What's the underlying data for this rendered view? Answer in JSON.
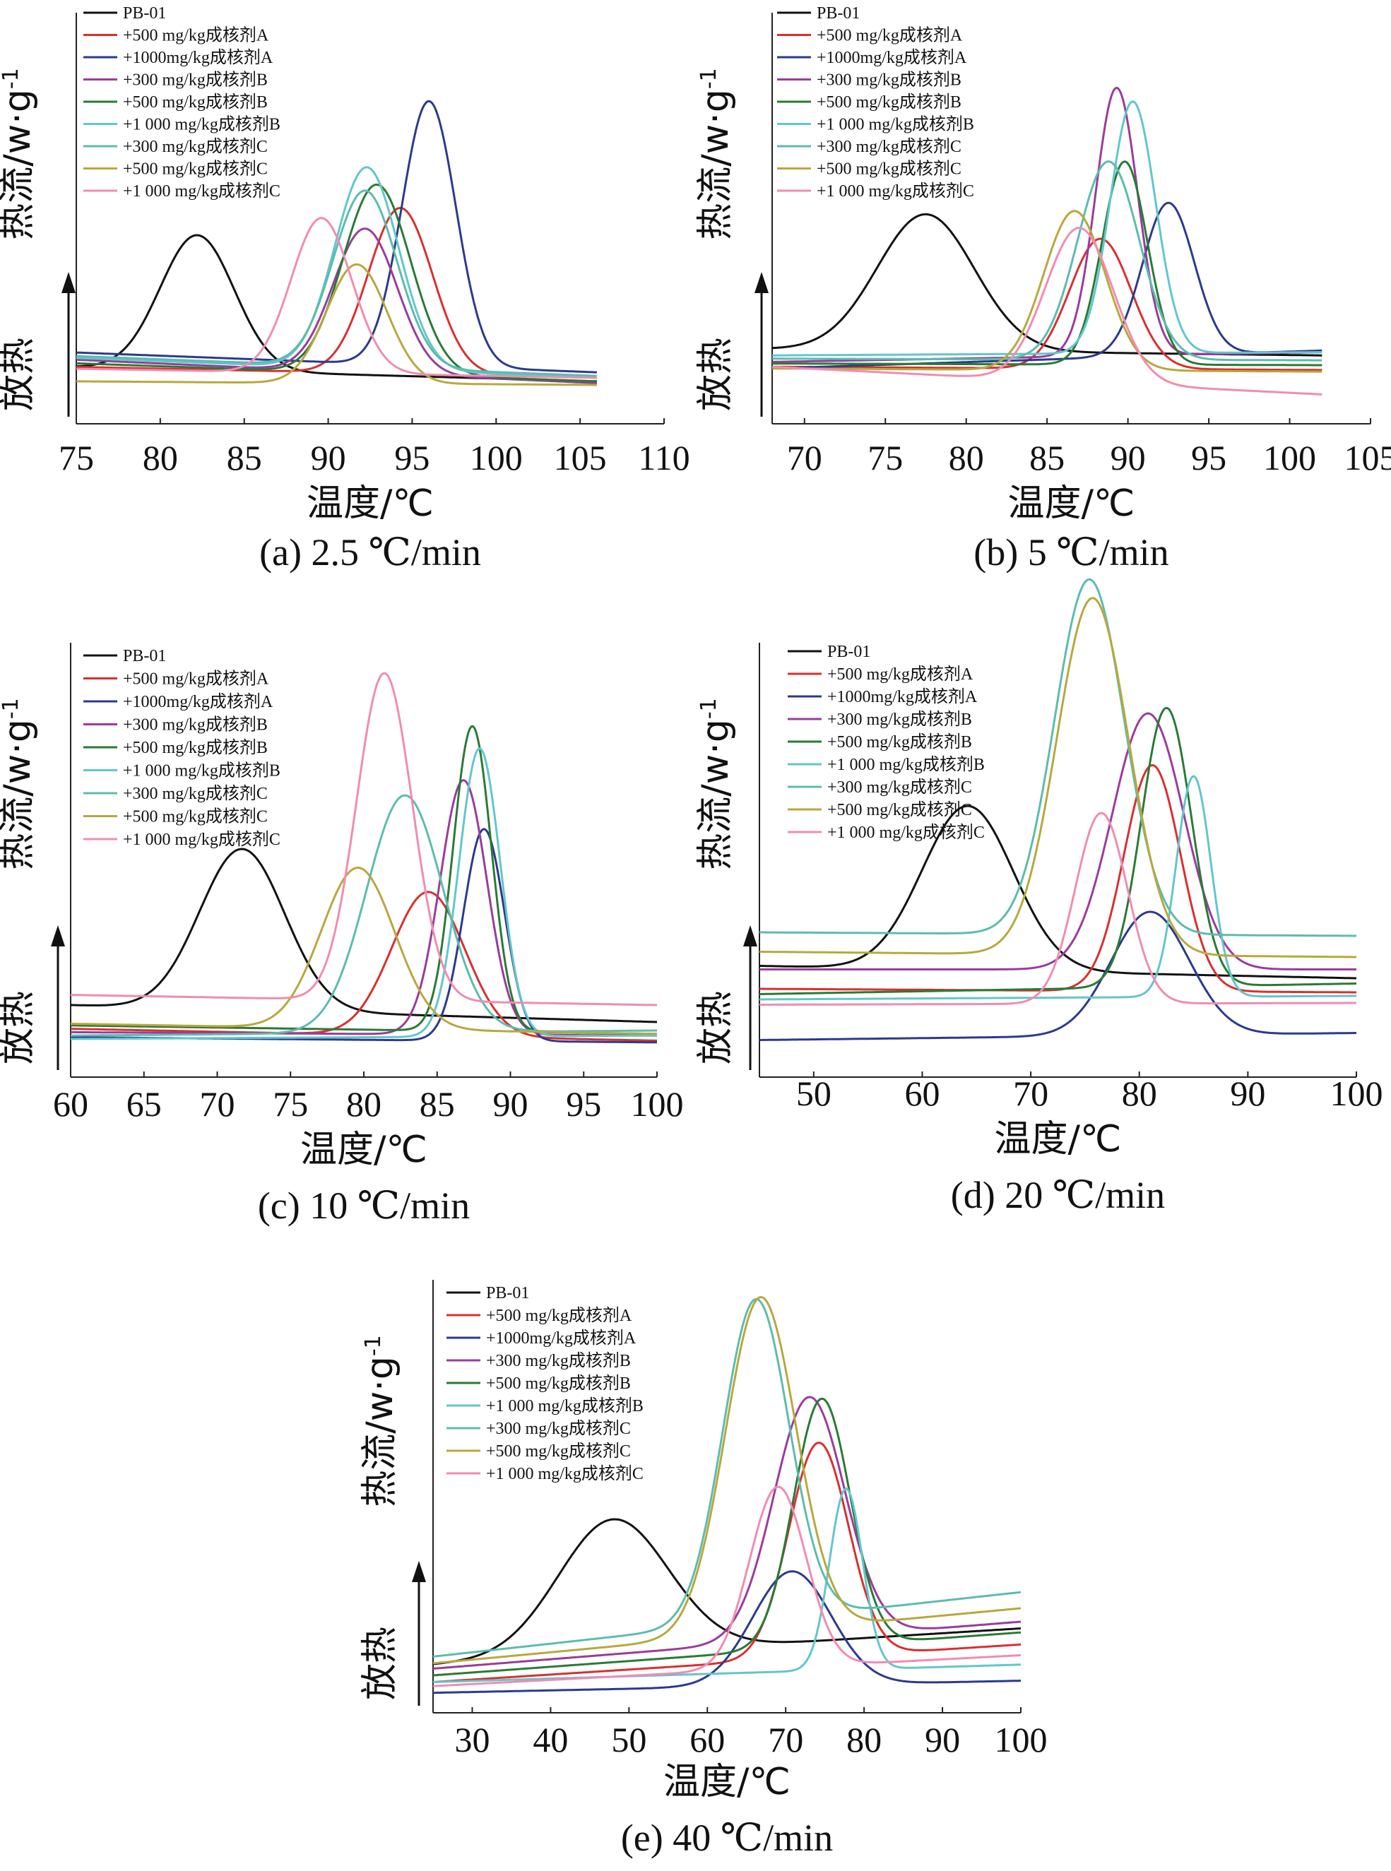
{
  "figure": {
    "y_label": "热流/w·g",
    "y_label_sup": "-1",
    "exo_label": "放热",
    "x_label": "温度/℃"
  },
  "legend": [
    {
      "name": "PB-01",
      "color": "#111111"
    },
    {
      "name": "+500 mg/kg成核剂A",
      "color": "#d83030"
    },
    {
      "name": "+1000mg/kg成核剂A",
      "color": "#2c3a8c"
    },
    {
      "name": "+300 mg/kg成核剂B",
      "color": "#9a3c9c"
    },
    {
      "name": "+500 mg/kg成核剂B",
      "color": "#2a7a36"
    },
    {
      "name": "+1 000 mg/kg成核剂B",
      "color": "#62c6cc"
    },
    {
      "name": "+300 mg/kg成核剂C",
      "color": "#5cbcae"
    },
    {
      "name": "+500 mg/kg成核剂C",
      "color": "#b8a83e"
    },
    {
      "name": "+1 000 mg/kg成核剂C",
      "color": "#f08cb2"
    }
  ],
  "chart_data": [
    {
      "type": "line",
      "caption": "(a) 2.5 ℃/min",
      "xlabel": "温度/℃",
      "ylabel": "热流/w·g-1",
      "xlim": [
        75,
        110
      ],
      "xticks": [
        75,
        80,
        85,
        90,
        95,
        100,
        105,
        110
      ],
      "curve_end": 106,
      "ylim": [
        0,
        1
      ],
      "series": [
        {
          "name": "PB-01",
          "baseline_left": 0.1,
          "baseline_right": 0.02,
          "peak_x": 82.2,
          "peak_h": 0.75,
          "width": 2.2
        },
        {
          "name": "+500 mg/kg成核剂A",
          "baseline_left": 0.1,
          "baseline_right": 0.04,
          "peak_x": 94.3,
          "peak_h": 0.92,
          "width": 1.9
        },
        {
          "name": "+1000mg/kg成核剂A",
          "baseline_left": 0.18,
          "baseline_right": 0.07,
          "peak_x": 96.0,
          "peak_h": 1.47,
          "width": 1.6
        },
        {
          "name": "+300 mg/kg成核剂B",
          "baseline_left": 0.14,
          "baseline_right": 0.01,
          "peak_x": 92.2,
          "peak_h": 0.8,
          "width": 1.9
        },
        {
          "name": "+500 mg/kg成核剂B",
          "baseline_left": 0.12,
          "baseline_right": 0.02,
          "peak_x": 92.9,
          "peak_h": 1.05,
          "width": 2.0
        },
        {
          "name": "+1 000 mg/kg成核剂B",
          "baseline_left": 0.15,
          "baseline_right": 0.04,
          "peak_x": 92.3,
          "peak_h": 1.12,
          "width": 1.9
        },
        {
          "name": "+300 mg/kg成核剂C",
          "baseline_left": 0.16,
          "baseline_right": 0.05,
          "peak_x": 92.2,
          "peak_h": 0.98,
          "width": 1.9
        },
        {
          "name": "+500 mg/kg成核剂C",
          "baseline_left": 0.02,
          "baseline_right": 0.0,
          "peak_x": 91.7,
          "peak_h": 0.66,
          "width": 1.8
        },
        {
          "name": "+1 000 mg/kg成核剂C",
          "baseline_left": 0.09,
          "baseline_right": 0.04,
          "peak_x": 89.6,
          "peak_h": 0.86,
          "width": 1.8
        }
      ]
    },
    {
      "type": "line",
      "caption": "(b) 5 ℃/min",
      "xlabel": "温度/℃",
      "ylabel": "热流/w·g-1",
      "xlim": [
        68,
        105
      ],
      "xticks": [
        70,
        75,
        80,
        85,
        90,
        95,
        100,
        105
      ],
      "curve_end": 102,
      "ylim": [
        0,
        1
      ],
      "series": [
        {
          "name": "PB-01",
          "baseline_left": 0.2,
          "baseline_right": 0.16,
          "peak_x": 77.5,
          "peak_h": 0.84,
          "width": 3.0
        },
        {
          "name": "+500 mg/kg成核剂A",
          "baseline_left": 0.09,
          "baseline_right": 0.07,
          "peak_x": 88.3,
          "peak_h": 0.8,
          "width": 1.9
        },
        {
          "name": "+1000mg/kg成核剂A",
          "baseline_left": 0.08,
          "baseline_right": 0.19,
          "peak_x": 92.5,
          "peak_h": 0.94,
          "width": 1.6
        },
        {
          "name": "+300 mg/kg成核剂B",
          "baseline_left": 0.12,
          "baseline_right": 0.18,
          "peak_x": 89.3,
          "peak_h": 1.65,
          "width": 1.3
        },
        {
          "name": "+500 mg/kg成核剂B",
          "baseline_left": 0.11,
          "baseline_right": 0.1,
          "peak_x": 89.8,
          "peak_h": 1.25,
          "width": 1.4
        },
        {
          "name": "+1 000 mg/kg成核剂B",
          "baseline_left": 0.16,
          "baseline_right": 0.18,
          "peak_x": 90.3,
          "peak_h": 1.55,
          "width": 1.4
        },
        {
          "name": "+300 mg/kg成核剂C",
          "baseline_left": 0.14,
          "baseline_right": 0.13,
          "peak_x": 88.8,
          "peak_h": 1.22,
          "width": 1.9
        },
        {
          "name": "+500 mg/kg成核剂C",
          "baseline_left": 0.08,
          "baseline_right": 0.06,
          "peak_x": 86.7,
          "peak_h": 0.98,
          "width": 1.9
        },
        {
          "name": "+1 000 mg/kg成核剂C",
          "baseline_left": 0.09,
          "baseline_right": -0.08,
          "peak_x": 87.0,
          "peak_h": 0.95,
          "width": 2.1
        }
      ]
    },
    {
      "type": "line",
      "caption": "(c) 10 ℃/min",
      "xlabel": "温度/℃",
      "ylabel": "热流/w·g-1",
      "xlim": [
        60,
        100
      ],
      "xticks": [
        60,
        65,
        70,
        75,
        80,
        85,
        90,
        95,
        100
      ],
      "curve_end": 100,
      "ylim": [
        0,
        1
      ],
      "series": [
        {
          "name": "PB-01",
          "baseline_left": 0.3,
          "baseline_right": 0.2,
          "peak_x": 71.7,
          "peak_h": 0.95,
          "width": 2.9
        },
        {
          "name": "+500 mg/kg成核剂A",
          "baseline_left": 0.16,
          "baseline_right": 0.09,
          "peak_x": 84.4,
          "peak_h": 0.85,
          "width": 2.5
        },
        {
          "name": "+1000mg/kg成核剂A",
          "baseline_left": 0.11,
          "baseline_right": 0.08,
          "peak_x": 88.2,
          "peak_h": 1.25,
          "width": 1.4
        },
        {
          "name": "+300 mg/kg成核剂B",
          "baseline_left": 0.14,
          "baseline_right": 0.12,
          "peak_x": 86.8,
          "peak_h": 1.5,
          "width": 1.6
        },
        {
          "name": "+500 mg/kg成核剂B",
          "baseline_left": 0.18,
          "baseline_right": 0.13,
          "peak_x": 87.4,
          "peak_h": 1.8,
          "width": 1.3
        },
        {
          "name": "+1 000 mg/kg成核剂B",
          "baseline_left": 0.1,
          "baseline_right": 0.12,
          "peak_x": 87.9,
          "peak_h": 1.7,
          "width": 1.4
        },
        {
          "name": "+300 mg/kg成核剂C",
          "baseline_left": 0.12,
          "baseline_right": 0.15,
          "peak_x": 82.8,
          "peak_h": 1.4,
          "width": 2.6
        },
        {
          "name": "+500 mg/kg成核剂C",
          "baseline_left": 0.19,
          "baseline_right": 0.13,
          "peak_x": 79.6,
          "peak_h": 0.95,
          "width": 2.5
        },
        {
          "name": "+1 000 mg/kg成核剂C",
          "baseline_left": 0.36,
          "baseline_right": 0.3,
          "peak_x": 81.4,
          "peak_h": 1.93,
          "width": 1.9
        }
      ]
    },
    {
      "type": "line",
      "caption": "(d) 20 ℃/min",
      "xlabel": "温度/℃",
      "ylabel": "热流/w·g-1",
      "xlim": [
        45,
        100
      ],
      "xticks": [
        50,
        60,
        70,
        80,
        90,
        100
      ],
      "curve_end": 100,
      "ylim": [
        0,
        1
      ],
      "series": [
        {
          "name": "PB-01",
          "baseline_left": 0.47,
          "baseline_right": 0.4,
          "peak_x": 64.2,
          "peak_h": 0.93,
          "width": 4.2
        },
        {
          "name": "+500 mg/kg成核剂A",
          "baseline_left": 0.34,
          "baseline_right": 0.32,
          "peak_x": 81.2,
          "peak_h": 1.28,
          "width": 2.6
        },
        {
          "name": "+1000mg/kg成核剂A",
          "baseline_left": 0.05,
          "baseline_right": 0.09,
          "peak_x": 81.0,
          "peak_h": 0.7,
          "width": 3.6
        },
        {
          "name": "+300 mg/kg成核剂B",
          "baseline_left": 0.45,
          "baseline_right": 0.45,
          "peak_x": 80.8,
          "peak_h": 1.45,
          "width": 3.3
        },
        {
          "name": "+500 mg/kg成核剂B",
          "baseline_left": 0.31,
          "baseline_right": 0.37,
          "peak_x": 82.5,
          "peak_h": 1.58,
          "width": 2.3
        },
        {
          "name": "+1 000 mg/kg成核剂B",
          "baseline_left": 0.28,
          "baseline_right": 0.3,
          "peak_x": 85.0,
          "peak_h": 1.25,
          "width": 1.6
        },
        {
          "name": "+300 mg/kg成核剂C",
          "baseline_left": 0.66,
          "baseline_right": 0.64,
          "peak_x": 75.4,
          "peak_h": 2.01,
          "width": 3.2
        },
        {
          "name": "+500 mg/kg成核剂C",
          "baseline_left": 0.55,
          "baseline_right": 0.52,
          "peak_x": 75.7,
          "peak_h": 2.02,
          "width": 3.3
        },
        {
          "name": "+1 000 mg/kg成核剂C",
          "baseline_left": 0.25,
          "baseline_right": 0.26,
          "peak_x": 76.5,
          "peak_h": 1.08,
          "width": 2.4
        }
      ]
    },
    {
      "type": "line",
      "caption": "(e) 40 ℃/min",
      "xlabel": "温度/℃",
      "ylabel": "热流/w·g-1",
      "xlim": [
        25,
        100
      ],
      "xticks": [
        30,
        40,
        50,
        60,
        70,
        80,
        90,
        100
      ],
      "curve_end": 100,
      "ylim": [
        0,
        1
      ],
      "series": [
        {
          "name": "PB-01",
          "baseline_left": 0.28,
          "baseline_right": 0.55,
          "peak_x": 48.0,
          "peak_h": 1.0,
          "width": 7.0
        },
        {
          "name": "+500 mg/kg成核剂A",
          "baseline_left": 0.15,
          "baseline_right": 0.43,
          "peak_x": 74.2,
          "peak_h": 1.6,
          "width": 3.8
        },
        {
          "name": "+1000mg/kg成核剂A",
          "baseline_left": 0.07,
          "baseline_right": 0.16,
          "peak_x": 70.8,
          "peak_h": 0.85,
          "width": 5.0
        },
        {
          "name": "+300 mg/kg成核剂B",
          "baseline_left": 0.25,
          "baseline_right": 0.6,
          "peak_x": 73.0,
          "peak_h": 1.8,
          "width": 4.5
        },
        {
          "name": "+500 mg/kg成核剂B",
          "baseline_left": 0.2,
          "baseline_right": 0.52,
          "peak_x": 74.6,
          "peak_h": 1.85,
          "width": 3.6
        },
        {
          "name": "+1 000 mg/kg成核剂B",
          "baseline_left": 0.15,
          "baseline_right": 0.28,
          "peak_x": 77.7,
          "peak_h": 1.35,
          "width": 2.1
        },
        {
          "name": "+300 mg/kg成核剂C",
          "baseline_left": 0.34,
          "baseline_right": 0.82,
          "peak_x": 66.2,
          "peak_h": 2.4,
          "width": 4.2
        },
        {
          "name": "+500 mg/kg成核剂C",
          "baseline_left": 0.29,
          "baseline_right": 0.7,
          "peak_x": 66.8,
          "peak_h": 2.5,
          "width": 4.5
        },
        {
          "name": "+1 000 mg/kg成核剂C",
          "baseline_left": 0.12,
          "baseline_right": 0.35,
          "peak_x": 69.0,
          "peak_h": 1.35,
          "width": 3.6
        }
      ]
    }
  ]
}
